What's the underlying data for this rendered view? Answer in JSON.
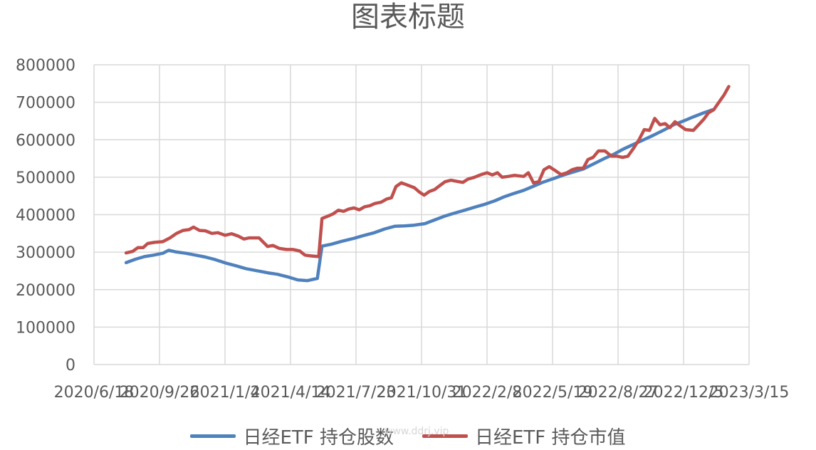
{
  "chart_data": {
    "type": "line",
    "title": "图表标题",
    "xlabel": "",
    "ylabel": "",
    "ylim": [
      0,
      800000
    ],
    "y_ticks": [
      "0",
      "100000",
      "200000",
      "300000",
      "400000",
      "500000",
      "600000",
      "700000",
      "800000"
    ],
    "x_ticks": [
      "2020/6/18",
      "2020/9/26",
      "2021/1/4",
      "2021/4/14",
      "2021/7/23",
      "2021/10/31",
      "2022/2/8",
      "2022/5/19",
      "2022/8/27",
      "2022/12/5",
      "2023/3/15"
    ],
    "x_range": [
      "2020/6/18",
      "2023/3/15"
    ],
    "grid": true,
    "legend_position": "bottom",
    "series": [
      {
        "name": "日经ETF 持仓股数",
        "color": "#4f81bd",
        "points": [
          [
            "2020-08-06",
            272000
          ],
          [
            "2020-08-20",
            281000
          ],
          [
            "2020-09-03",
            288000
          ],
          [
            "2020-09-17",
            292000
          ],
          [
            "2020-10-01",
            297000
          ],
          [
            "2020-10-10",
            305000
          ],
          [
            "2020-10-20",
            301000
          ],
          [
            "2020-11-05",
            297000
          ],
          [
            "2020-11-20",
            292000
          ],
          [
            "2020-12-05",
            287000
          ],
          [
            "2020-12-20",
            280000
          ],
          [
            "2021-01-05",
            271000
          ],
          [
            "2021-01-20",
            264000
          ],
          [
            "2021-02-05",
            256000
          ],
          [
            "2021-02-20",
            251000
          ],
          [
            "2021-03-10",
            245000
          ],
          [
            "2021-03-25",
            241000
          ],
          [
            "2021-04-10",
            234000
          ],
          [
            "2021-04-25",
            226000
          ],
          [
            "2021-05-10",
            224000
          ],
          [
            "2021-05-25",
            230000
          ],
          [
            "2021-06-01",
            316000
          ],
          [
            "2021-06-15",
            321000
          ],
          [
            "2021-07-01",
            329000
          ],
          [
            "2021-07-20",
            337000
          ],
          [
            "2021-08-05",
            345000
          ],
          [
            "2021-08-20",
            352000
          ],
          [
            "2021-09-05",
            362000
          ],
          [
            "2021-09-20",
            369000
          ],
          [
            "2021-10-05",
            370000
          ],
          [
            "2021-10-20",
            372000
          ],
          [
            "2021-11-05",
            376000
          ],
          [
            "2021-11-20",
            386000
          ],
          [
            "2021-12-05",
            396000
          ],
          [
            "2021-12-20",
            404000
          ],
          [
            "2022-01-05",
            412000
          ],
          [
            "2022-01-20",
            420000
          ],
          [
            "2022-02-05",
            428000
          ],
          [
            "2022-02-20",
            437000
          ],
          [
            "2022-03-05",
            447000
          ],
          [
            "2022-03-20",
            456000
          ],
          [
            "2022-04-05",
            465000
          ],
          [
            "2022-04-20",
            476000
          ],
          [
            "2022-05-05",
            487000
          ],
          [
            "2022-05-20",
            496000
          ],
          [
            "2022-06-05",
            506000
          ],
          [
            "2022-06-20",
            514000
          ],
          [
            "2022-07-05",
            522000
          ],
          [
            "2022-07-20",
            535000
          ],
          [
            "2022-08-05",
            549000
          ],
          [
            "2022-08-20",
            561000
          ],
          [
            "2022-09-05",
            576000
          ],
          [
            "2022-09-20",
            588000
          ],
          [
            "2022-10-05",
            600000
          ],
          [
            "2022-10-20",
            612000
          ],
          [
            "2022-11-05",
            626000
          ],
          [
            "2022-11-20",
            640000
          ],
          [
            "2022-12-05",
            650000
          ],
          [
            "2022-12-20",
            661000
          ],
          [
            "2023-01-05",
            672000
          ],
          [
            "2023-01-18",
            680000
          ]
        ]
      },
      {
        "name": "日经ETF 持仓市值",
        "color": "#c0504d",
        "points": [
          [
            "2020-08-06",
            298000
          ],
          [
            "2020-08-16",
            302000
          ],
          [
            "2020-08-24",
            312000
          ],
          [
            "2020-09-01",
            312000
          ],
          [
            "2020-09-08",
            323000
          ],
          [
            "2020-09-18",
            326000
          ],
          [
            "2020-10-01",
            328000
          ],
          [
            "2020-10-12",
            338000
          ],
          [
            "2020-10-22",
            350000
          ],
          [
            "2020-11-01",
            358000
          ],
          [
            "2020-11-10",
            360000
          ],
          [
            "2020-11-17",
            367000
          ],
          [
            "2020-11-26",
            358000
          ],
          [
            "2020-12-05",
            357000
          ],
          [
            "2020-12-15",
            350000
          ],
          [
            "2020-12-24",
            352000
          ],
          [
            "2021-01-04",
            345000
          ],
          [
            "2021-01-14",
            349000
          ],
          [
            "2021-01-24",
            343000
          ],
          [
            "2021-02-02",
            335000
          ],
          [
            "2021-02-10",
            338000
          ],
          [
            "2021-02-25",
            338000
          ],
          [
            "2021-03-10",
            315000
          ],
          [
            "2021-03-18",
            318000
          ],
          [
            "2021-03-28",
            310000
          ],
          [
            "2021-04-08",
            307000
          ],
          [
            "2021-04-18",
            307000
          ],
          [
            "2021-04-28",
            303000
          ],
          [
            "2021-05-06",
            292000
          ],
          [
            "2021-05-15",
            290000
          ],
          [
            "2021-05-27",
            288000
          ],
          [
            "2021-06-01",
            390000
          ],
          [
            "2021-06-10",
            396000
          ],
          [
            "2021-06-18",
            402000
          ],
          [
            "2021-06-26",
            412000
          ],
          [
            "2021-07-04",
            409000
          ],
          [
            "2021-07-12",
            415000
          ],
          [
            "2021-07-20",
            418000
          ],
          [
            "2021-07-28",
            413000
          ],
          [
            "2021-08-05",
            421000
          ],
          [
            "2021-08-13",
            424000
          ],
          [
            "2021-08-21",
            430000
          ],
          [
            "2021-08-30",
            433000
          ],
          [
            "2021-09-08",
            442000
          ],
          [
            "2021-09-15",
            445000
          ],
          [
            "2021-09-22",
            475000
          ],
          [
            "2021-09-30",
            485000
          ],
          [
            "2021-10-08",
            480000
          ],
          [
            "2021-10-20",
            472000
          ],
          [
            "2021-10-28",
            460000
          ],
          [
            "2021-11-04",
            452000
          ],
          [
            "2021-11-12",
            462000
          ],
          [
            "2021-11-20",
            467000
          ],
          [
            "2021-11-28",
            478000
          ],
          [
            "2021-12-06",
            488000
          ],
          [
            "2021-12-15",
            492000
          ],
          [
            "2021-12-24",
            489000
          ],
          [
            "2022-01-02",
            486000
          ],
          [
            "2022-01-10",
            495000
          ],
          [
            "2022-01-20",
            500000
          ],
          [
            "2022-01-30",
            507000
          ],
          [
            "2022-02-08",
            512000
          ],
          [
            "2022-02-16",
            506000
          ],
          [
            "2022-02-24",
            512000
          ],
          [
            "2022-03-03",
            500000
          ],
          [
            "2022-03-12",
            502000
          ],
          [
            "2022-03-22",
            505000
          ],
          [
            "2022-04-05",
            502000
          ],
          [
            "2022-04-12",
            512000
          ],
          [
            "2022-04-20",
            485000
          ],
          [
            "2022-04-28",
            488000
          ],
          [
            "2022-05-06",
            520000
          ],
          [
            "2022-05-14",
            528000
          ],
          [
            "2022-05-22",
            519000
          ],
          [
            "2022-06-01",
            507000
          ],
          [
            "2022-06-10",
            512000
          ],
          [
            "2022-06-18",
            520000
          ],
          [
            "2022-06-26",
            524000
          ],
          [
            "2022-07-05",
            524000
          ],
          [
            "2022-07-12",
            547000
          ],
          [
            "2022-07-20",
            553000
          ],
          [
            "2022-07-28",
            570000
          ],
          [
            "2022-08-07",
            570000
          ],
          [
            "2022-08-17",
            556000
          ],
          [
            "2022-08-26",
            556000
          ],
          [
            "2022-09-03",
            553000
          ],
          [
            "2022-09-11",
            556000
          ],
          [
            "2022-09-20",
            578000
          ],
          [
            "2022-09-28",
            600000
          ],
          [
            "2022-10-06",
            627000
          ],
          [
            "2022-10-14",
            625000
          ],
          [
            "2022-10-22",
            657000
          ],
          [
            "2022-10-30",
            640000
          ],
          [
            "2022-11-07",
            643000
          ],
          [
            "2022-11-14",
            632000
          ],
          [
            "2022-11-22",
            648000
          ],
          [
            "2022-11-30",
            637000
          ],
          [
            "2022-12-08",
            627000
          ],
          [
            "2022-12-20",
            625000
          ],
          [
            "2022-12-28",
            640000
          ],
          [
            "2023-01-05",
            655000
          ],
          [
            "2023-01-12",
            672000
          ],
          [
            "2023-01-20",
            680000
          ],
          [
            "2023-01-28",
            700000
          ],
          [
            "2023-02-05",
            720000
          ],
          [
            "2023-02-12",
            742000
          ]
        ]
      }
    ]
  },
  "watermark": "www.ddrj.vip"
}
